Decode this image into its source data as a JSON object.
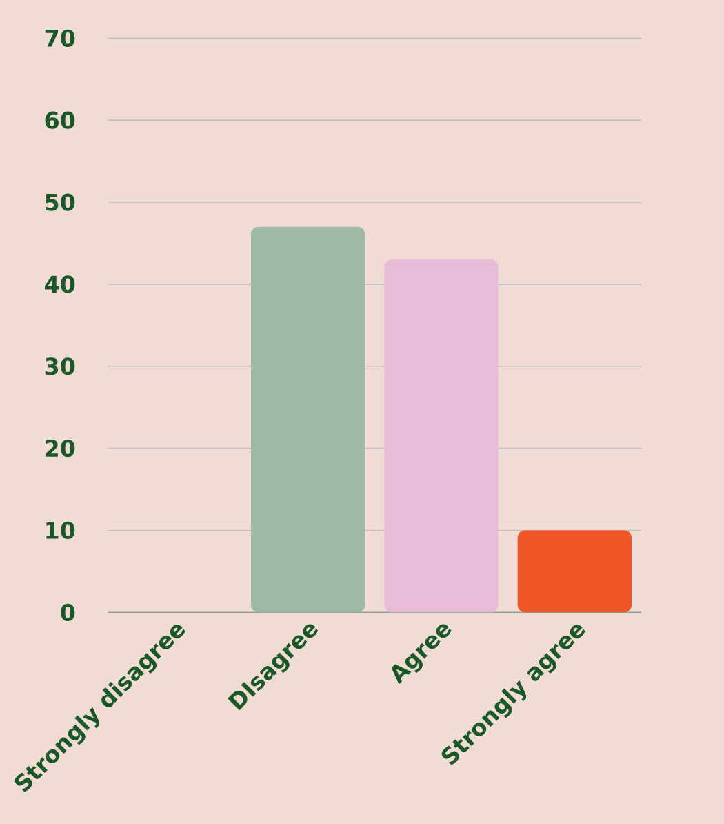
{
  "chart_data": {
    "type": "bar",
    "categories": [
      "Strongly disagree",
      "DIsagree",
      "Agree",
      "Strongly agree"
    ],
    "values": [
      0,
      47,
      43,
      10
    ],
    "colors": [
      "#a0b8a6",
      "#a0b8a6",
      "#e8bcd9",
      "#ee5628"
    ],
    "ylim": [
      0,
      70
    ],
    "yticks": [
      0,
      10,
      20,
      30,
      40,
      50,
      60,
      70
    ],
    "grid": "y"
  }
}
